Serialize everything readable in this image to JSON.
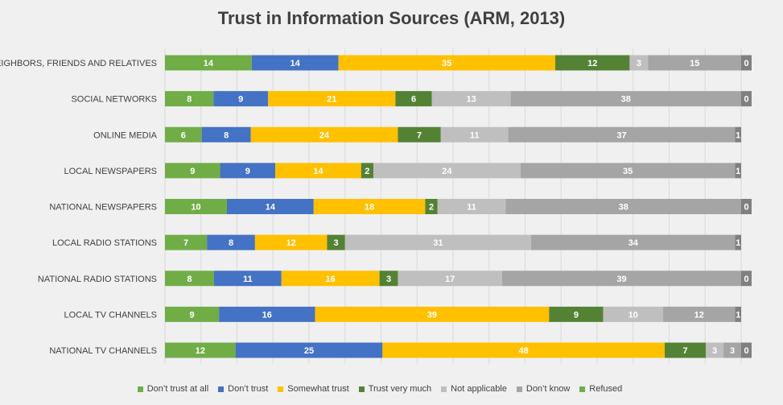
{
  "chart_data": {
    "type": "bar",
    "orientation": "horizontal",
    "stacked": true,
    "title": "Trust in Information Sources (ARM, 2013)",
    "grid": true,
    "legend_position": "bottom",
    "categories": [
      "NEIGHBORS, FRIENDS AND RELATIVES",
      "SOCIAL NETWORKS",
      "ONLINE MEDIA",
      "LOCAL NEWSPAPERS",
      "NATIONAL NEWSPAPERS",
      "LOCAL RADIO STATIONS",
      "NATIONAL RADIO STATIONS",
      "LOCAL TV CHANNELS",
      "NATIONAL TV CHANNELS"
    ],
    "series": [
      {
        "name": "Don't trust at all",
        "color": "#70ad47",
        "values": [
          14,
          8,
          6,
          9,
          10,
          7,
          8,
          9,
          12
        ]
      },
      {
        "name": "Don't trust",
        "color": "#4472c4",
        "values": [
          14,
          9,
          8,
          9,
          14,
          8,
          11,
          16,
          25
        ]
      },
      {
        "name": "Somewhat trust",
        "color": "#ffc000",
        "values": [
          35,
          21,
          24,
          14,
          18,
          12,
          16,
          39,
          48
        ]
      },
      {
        "name": "Trust very much",
        "color": "#548235",
        "values": [
          12,
          6,
          7,
          2,
          2,
          3,
          3,
          9,
          7
        ]
      },
      {
        "name": "Not applicable",
        "color": "#bfbfbf",
        "values": [
          3,
          13,
          11,
          24,
          11,
          31,
          17,
          10,
          3
        ]
      },
      {
        "name": "Don't know",
        "color": "#a5a5a5",
        "values": [
          15,
          38,
          37,
          35,
          38,
          34,
          39,
          12,
          3
        ]
      },
      {
        "name": "Refused",
        "color": "#808080",
        "values": [
          0,
          0,
          1,
          1,
          0,
          1,
          0,
          1,
          0
        ]
      }
    ],
    "legend_labels": [
      "Don’t trust at all",
      "Don’t trust",
      "Somewhat trust",
      "Trust very much",
      "Not applicable",
      "Don’t know",
      "Refused"
    ],
    "legend_colors": [
      "#70ad47",
      "#4472c4",
      "#ffc000",
      "#548235",
      "#bfbfbf",
      "#a5a5a5",
      "#70ad47"
    ]
  }
}
